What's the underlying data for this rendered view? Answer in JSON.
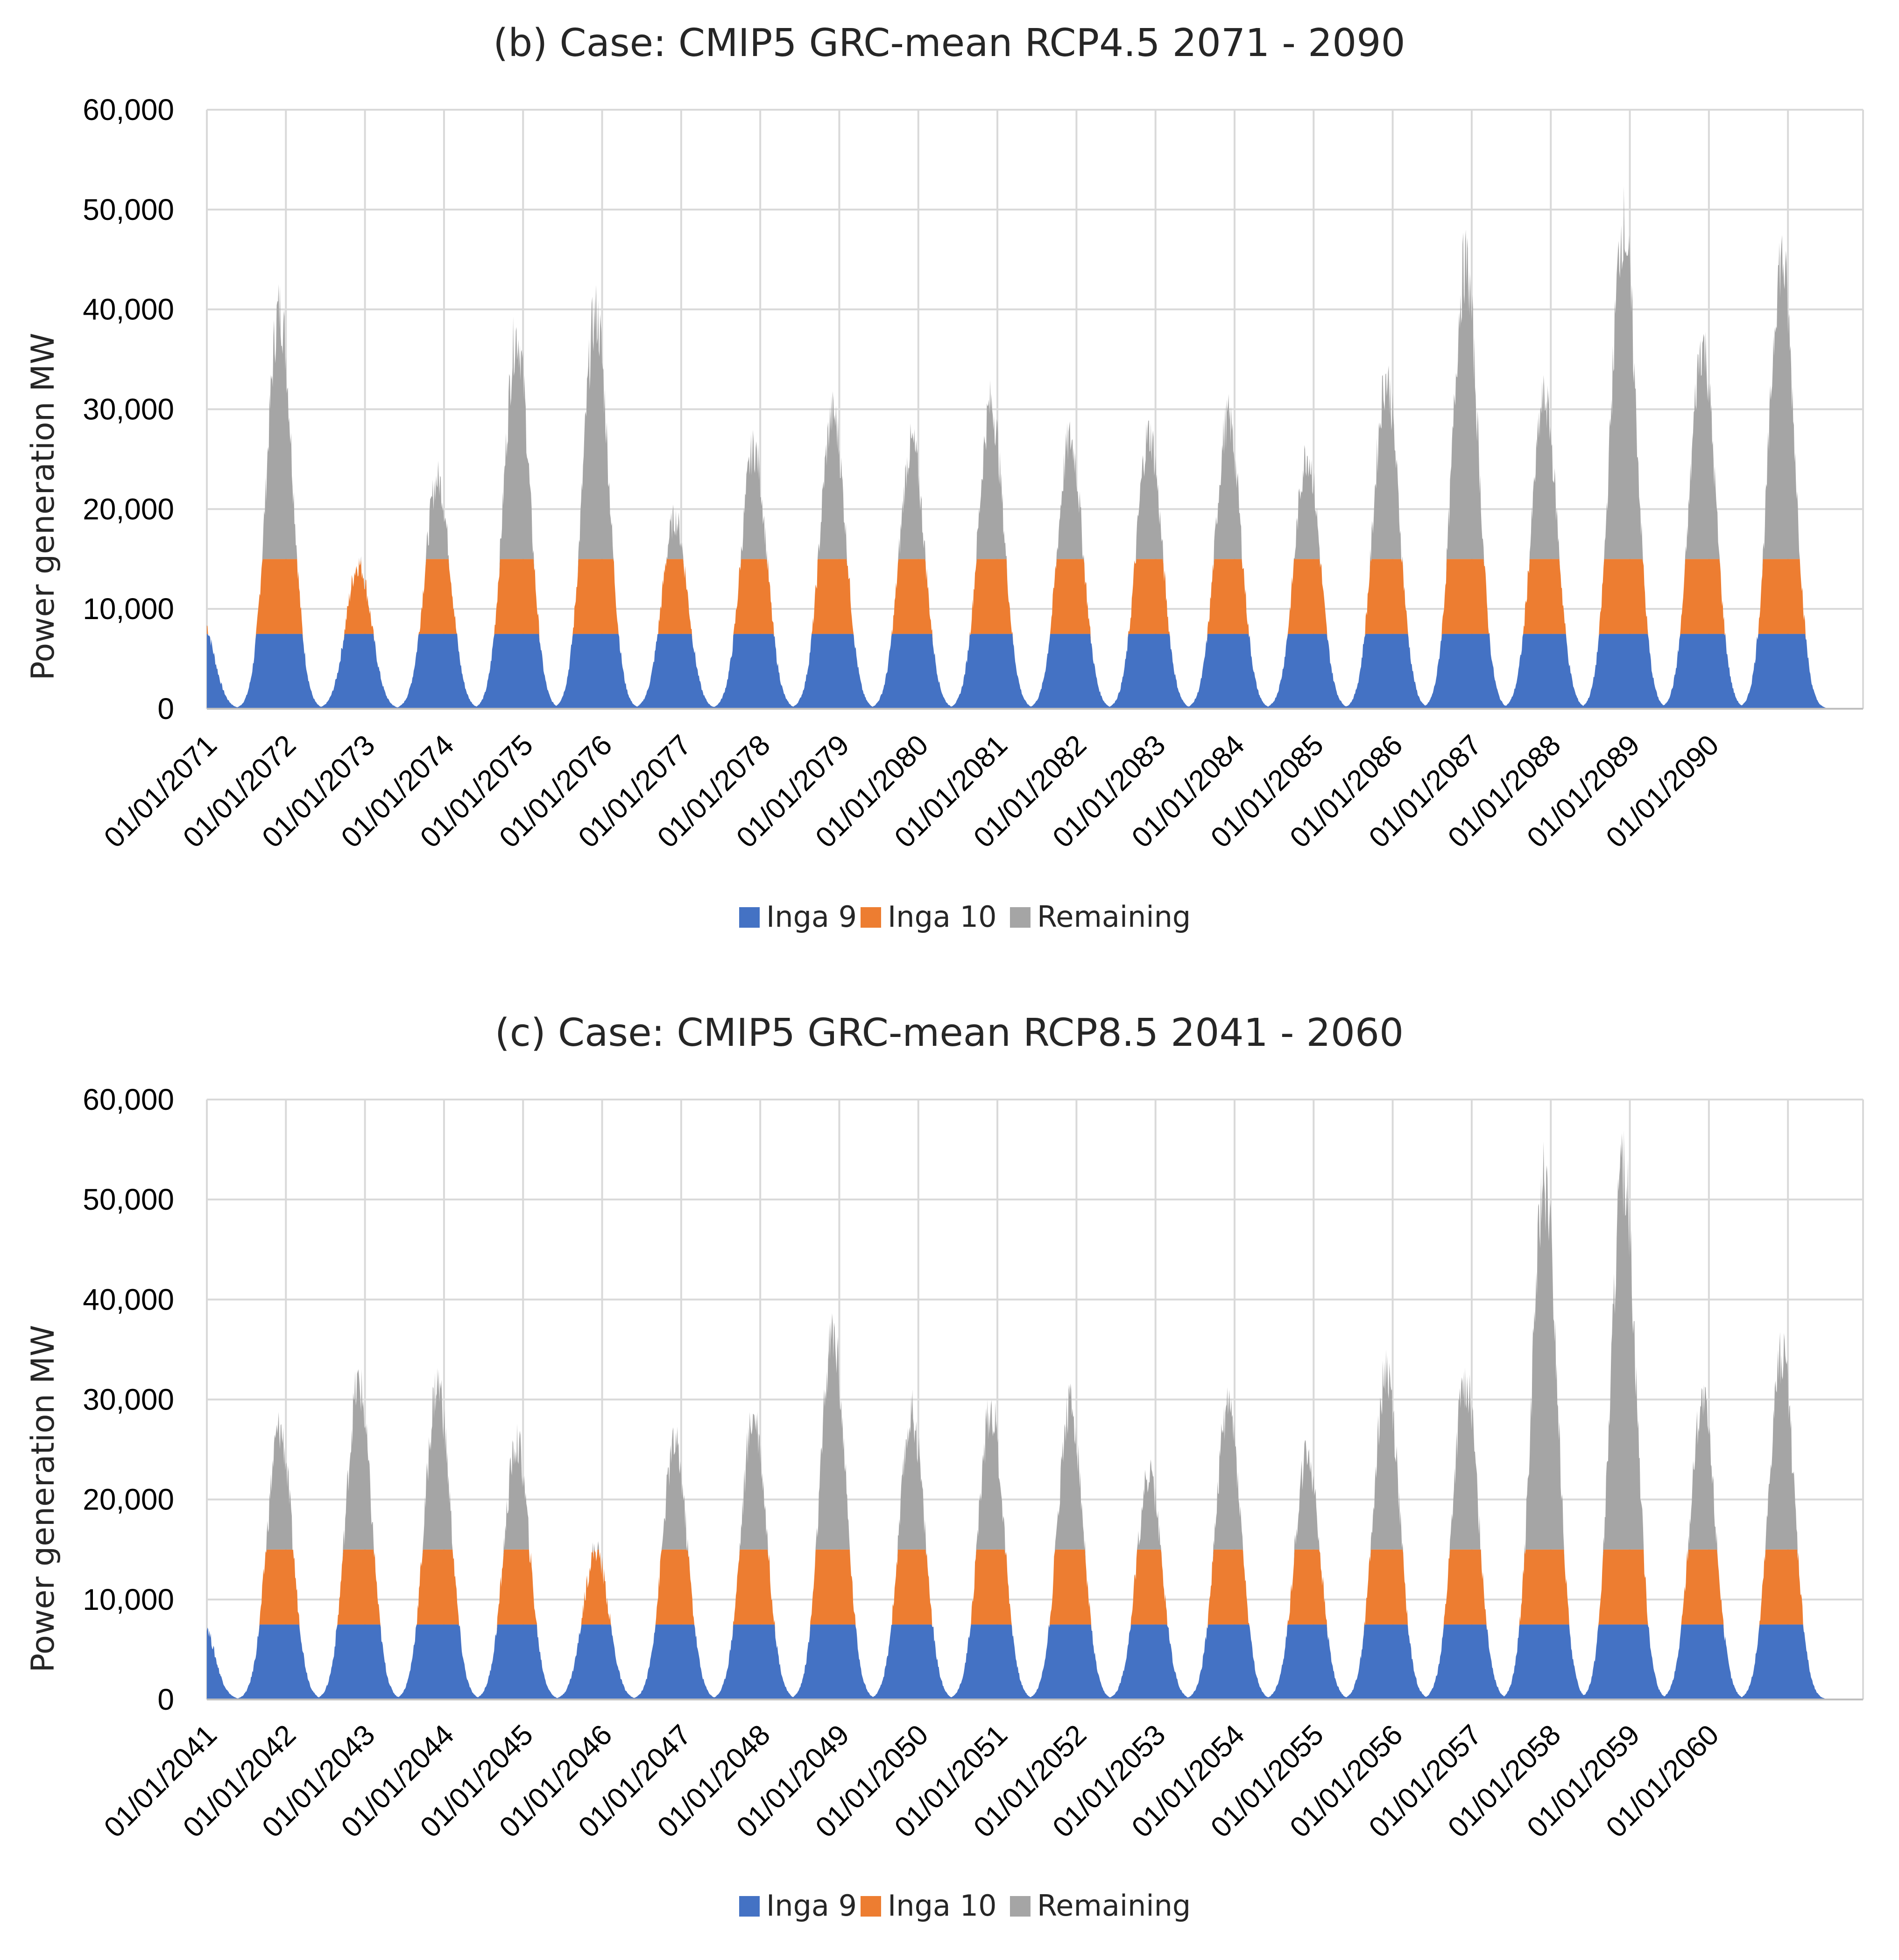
{
  "colors": {
    "inga9": "#4472c4",
    "inga10": "#ed7d31",
    "remaining": "#a5a5a5"
  },
  "chart_data": [
    {
      "type": "area",
      "stacked": true,
      "title": "(b)  Case: CMIP5 GRC-mean  RCP4.5  2071 - 2090",
      "xlabel": "",
      "ylabel": "Power generation MW",
      "ylim": [
        0,
        60000
      ],
      "yticks": [
        "0",
        "10,000",
        "20,000",
        "30,000",
        "40,000",
        "50,000",
        "60,000"
      ],
      "categories": [
        "01/01/2071",
        "01/01/2072",
        "01/01/2073",
        "01/01/2074",
        "01/01/2075",
        "01/01/2076",
        "01/01/2077",
        "01/01/2078",
        "01/01/2079",
        "01/01/2080",
        "01/01/2081",
        "01/01/2082",
        "01/01/2083",
        "01/01/2084",
        "01/01/2085",
        "01/01/2086",
        "01/01/2087",
        "01/01/2088",
        "01/01/2089",
        "01/01/2090"
      ],
      "grid": true,
      "legend_position": "bottom",
      "capacity": {
        "Inga 9": 7500,
        "Inga 10": 7500
      },
      "annual_peak_flow_MW": [
        9500,
        40000,
        14500,
        23000,
        37500,
        39500,
        19000,
        26000,
        29500,
        26500,
        30500,
        27000,
        27500,
        29000,
        25500,
        33000,
        44500,
        31000,
        48500,
        36500,
        45000
      ],
      "series": [
        {
          "name": "Inga 9",
          "peak_values": [
            7500,
            7500,
            7500,
            7500,
            7500,
            7500,
            7500,
            7500,
            7500,
            7500,
            7500,
            7500,
            7500,
            7500,
            7500,
            7500,
            7500,
            7500,
            7500,
            7500,
            7500
          ]
        },
        {
          "name": "Inga 10",
          "peak_values": [
            2000,
            7500,
            7000,
            7500,
            7500,
            7500,
            7500,
            7500,
            7500,
            7500,
            7500,
            7500,
            7500,
            7500,
            7500,
            7500,
            7500,
            7500,
            7500,
            7500,
            7500
          ]
        },
        {
          "name": "Remaining",
          "peak_values": [
            0,
            25000,
            0,
            8000,
            22500,
            24500,
            4000,
            11000,
            14500,
            11500,
            15500,
            12000,
            12500,
            14000,
            10500,
            18000,
            29500,
            16000,
            33500,
            21500,
            30000
          ]
        }
      ]
    },
    {
      "type": "area",
      "stacked": true,
      "title": "(c)  Case: CMIP5 GRC-mean  RCP8.5  2041 - 2060",
      "xlabel": "",
      "ylabel": "Power generation MW",
      "ylim": [
        0,
        60000
      ],
      "yticks": [
        "0",
        "10,000",
        "20,000",
        "30,000",
        "40,000",
        "50,000",
        "60,000"
      ],
      "categories": [
        "01/01/2041",
        "01/01/2042",
        "01/01/2043",
        "01/01/2044",
        "01/01/2045",
        "01/01/2046",
        "01/01/2047",
        "01/01/2048",
        "01/01/2049",
        "01/01/2050",
        "01/01/2051",
        "01/01/2052",
        "01/01/2053",
        "01/01/2054",
        "01/01/2055",
        "01/01/2056",
        "01/01/2057",
        "01/01/2058",
        "01/01/2059",
        "01/01/2060"
      ],
      "grid": true,
      "legend_position": "bottom",
      "capacity": {
        "Inga 9": 7500,
        "Inga 10": 7500
      },
      "annual_peak_flow_MW": [
        8500,
        27000,
        31500,
        31500,
        25500,
        15000,
        25500,
        28500,
        36500,
        28500,
        29000,
        29500,
        22500,
        29500,
        24500,
        33000,
        32000,
        51500,
        53000,
        29500,
        34500
      ],
      "series": [
        {
          "name": "Inga 9",
          "peak_values": [
            7500,
            7500,
            7500,
            7500,
            7500,
            7500,
            7500,
            7500,
            7500,
            7500,
            7500,
            7500,
            7500,
            7500,
            7500,
            7500,
            7500,
            7500,
            7500,
            7500,
            7500
          ]
        },
        {
          "name": "Inga 10",
          "peak_values": [
            1000,
            7500,
            7500,
            7500,
            7500,
            7500,
            7500,
            7500,
            7500,
            7500,
            7500,
            7500,
            7500,
            7500,
            7500,
            7500,
            7500,
            7500,
            7500,
            7500,
            7500
          ]
        },
        {
          "name": "Remaining",
          "peak_values": [
            0,
            12000,
            16500,
            16500,
            10500,
            0,
            10500,
            13500,
            21500,
            13500,
            14000,
            14500,
            7500,
            14500,
            9500,
            18000,
            17000,
            36500,
            38000,
            14500,
            19500
          ]
        }
      ]
    }
  ]
}
